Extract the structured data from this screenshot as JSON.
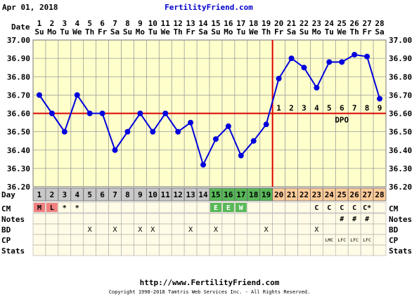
{
  "header": {
    "date_label": "Apr 01, 2018",
    "site_name": "FertilityFriend.com"
  },
  "row_labels": {
    "date": "Date",
    "day": "Day",
    "cm": "CM",
    "notes": "Notes",
    "bd": "BD",
    "cp": "CP",
    "stats": "Stats"
  },
  "chart_data": {
    "type": "line",
    "title": "",
    "xlabel": "",
    "ylabel": "",
    "ylim": [
      36.2,
      37.0
    ],
    "y_ticks": [
      "37.00",
      "36.90",
      "36.80",
      "36.70",
      "36.60",
      "36.50",
      "36.40",
      "36.30",
      "36.20"
    ],
    "grid": true,
    "x_dates": [
      "1",
      "2",
      "3",
      "4",
      "5",
      "6",
      "7",
      "8",
      "9",
      "10",
      "11",
      "12",
      "13",
      "14",
      "15",
      "16",
      "17",
      "18",
      "19",
      "20",
      "21",
      "22",
      "23",
      "24",
      "25",
      "26",
      "27",
      "28"
    ],
    "x_weekdays": [
      "Su",
      "Mo",
      "Tu",
      "We",
      "Th",
      "Fr",
      "Sa",
      "Su",
      "Mo",
      "Tu",
      "We",
      "Th",
      "Fr",
      "Sa",
      "Su",
      "Mo",
      "Tu",
      "We",
      "Th",
      "Fr",
      "Sa",
      "Su",
      "Mo",
      "Tu",
      "We",
      "Th",
      "Fr",
      "Sa"
    ],
    "cycle_days": [
      1,
      2,
      3,
      4,
      5,
      6,
      7,
      8,
      9,
      10,
      11,
      12,
      13,
      14,
      15,
      16,
      17,
      18,
      19,
      20,
      21,
      22,
      23,
      24,
      25,
      26,
      27,
      28
    ],
    "series": [
      {
        "values": [
          36.7,
          36.6,
          36.5,
          36.7,
          36.6,
          36.6,
          36.4,
          36.5,
          36.6,
          36.5,
          36.6,
          36.5,
          36.55,
          36.32,
          36.46,
          36.53,
          36.37,
          36.45,
          36.54,
          36.79,
          36.9,
          36.85,
          36.74,
          36.88,
          36.88,
          36.92,
          36.91,
          36.68
        ]
      }
    ],
    "coverline": 36.6,
    "ovulation_day": 19,
    "dpo_numbers": [
      "1",
      "2",
      "3",
      "4",
      "5",
      "6",
      "7",
      "8",
      "9"
    ],
    "dpo_label": "DPO",
    "day_row_colors": {
      "menses": "#c8c8c8",
      "normal": "#c8c8c8",
      "fertile": "#58b858",
      "luteal": "#ffcc99"
    },
    "cm_row": [
      "M",
      "L",
      "*",
      "*",
      "",
      "",
      "",
      "",
      "",
      "",
      "",
      "",
      "",
      "",
      "E",
      "E",
      "W",
      "",
      "",
      "",
      "",
      "",
      "C",
      "C",
      "C",
      "C",
      "C*",
      ""
    ],
    "notes_row": [
      "",
      "",
      "",
      "",
      "",
      "",
      "",
      "",
      "",
      "",
      "",
      "",
      "",
      "",
      "",
      "",
      "",
      "",
      "",
      "",
      "",
      "",
      "",
      "",
      "#",
      "#",
      "#",
      ""
    ],
    "bd_row": [
      "",
      "",
      "",
      "",
      "X",
      "",
      "X",
      "",
      "X",
      "X",
      "",
      "",
      "X",
      "",
      "X",
      "",
      "",
      "",
      "X",
      "",
      "",
      "",
      "X",
      "",
      "",
      "",
      "",
      ""
    ],
    "cp_row": [
      "",
      "",
      "",
      "",
      "",
      "",
      "",
      "",
      "",
      "",
      "",
      "",
      "",
      "",
      "",
      "",
      "",
      "",
      "",
      "",
      "",
      "",
      "",
      "LMC",
      "LFC",
      "LFC",
      "LFC",
      ""
    ]
  },
  "footer": {
    "url": "http://www.FertilityFriend.com",
    "copyright": "Copyright 1998-2018 Tamtris Web Services Inc. - All Rights Reserved."
  }
}
